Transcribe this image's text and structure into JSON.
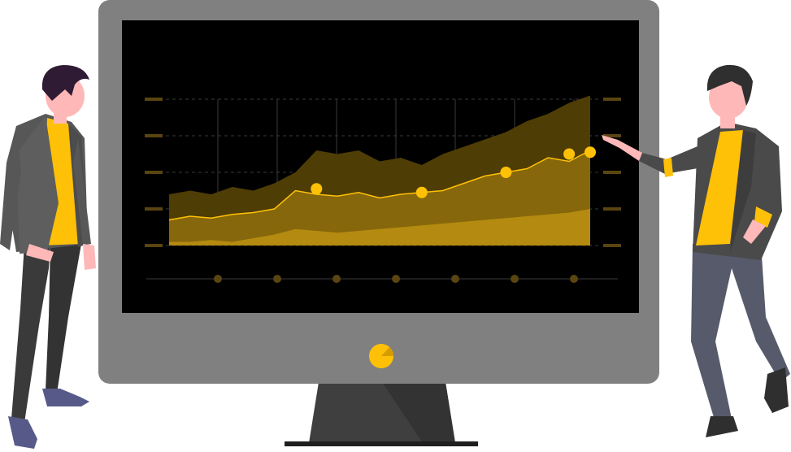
{
  "colors": {
    "background": "#ffffff",
    "monitor_frame": "#808080",
    "screen": "#000000",
    "stand": "#3f3f3f",
    "accent": "#ffc107",
    "area_dark": "#4f3d06",
    "area_mid": "#86670b",
    "area_light": "#b48a10",
    "grid": "#3a3a3a",
    "tick_mark": "#5a4510",
    "skin": "#ffb8b8",
    "hair": "#2f1b34",
    "jacket": "#575757",
    "pants_left": "#3a3a3a",
    "pants_right": "#575a6b",
    "shoes": "#575a89"
  },
  "icons": {
    "monitor_logo": "pie-chart-icon"
  },
  "chart_data": {
    "type": "area",
    "title": "",
    "xlabel": "",
    "ylabel": "",
    "grid": true,
    "legend": "none",
    "ylim": [
      0,
      4
    ],
    "series": [
      {
        "role": "top-band",
        "values": [
          1.4,
          1.5,
          1.4,
          1.6,
          1.5,
          1.7,
          2.0,
          2.6,
          2.5,
          2.6,
          2.3,
          2.4,
          2.2,
          2.5,
          2.7,
          2.9,
          3.1,
          3.4,
          3.6,
          3.9,
          4.1
        ]
      },
      {
        "role": "middle-line",
        "values": [
          0.7,
          0.8,
          0.75,
          0.85,
          0.9,
          1.0,
          1.5,
          1.4,
          1.35,
          1.45,
          1.3,
          1.4,
          1.45,
          1.5,
          1.7,
          1.9,
          2.0,
          2.1,
          2.4,
          2.3,
          2.6
        ]
      },
      {
        "role": "bottom-band",
        "values": [
          0.1,
          0.1,
          0.15,
          0.1,
          0.2,
          0.3,
          0.45,
          0.4,
          0.35,
          0.4,
          0.45,
          0.5,
          0.55,
          0.6,
          0.65,
          0.7,
          0.75,
          0.8,
          0.85,
          0.9,
          1.0
        ]
      }
    ],
    "highlight_points": [
      {
        "index": 7,
        "value": 1.55
      },
      {
        "index": 12,
        "value": 1.45
      },
      {
        "index": 16,
        "value": 2.0
      },
      {
        "index": 19,
        "value": 2.5
      },
      {
        "index": 20,
        "value": 2.55
      }
    ],
    "x_ticks": 7,
    "y_ticks": 5
  }
}
